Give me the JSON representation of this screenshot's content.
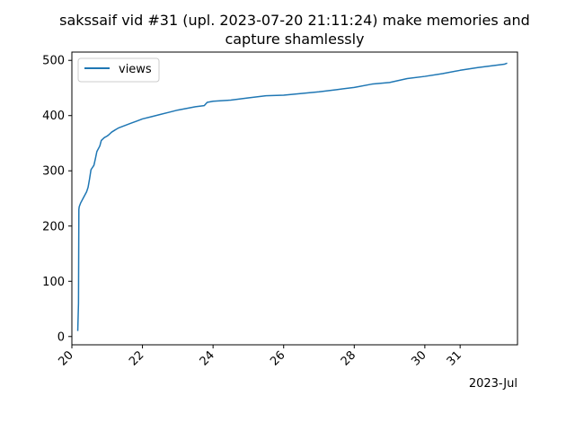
{
  "chart_data": {
    "type": "line",
    "title": [
      "sakssaif vid #31 (upl. 2023-07-20 21:11:24) make memories and",
      "capture shamlessly"
    ],
    "xlabel": "",
    "ylabel": "",
    "x_offset_label": "2023-Jul",
    "x_ticks": [
      {
        "label": "20",
        "value": "2023-07-20"
      },
      {
        "label": "22",
        "value": "2023-07-22"
      },
      {
        "label": "24",
        "value": "2023-07-24"
      },
      {
        "label": "26",
        "value": "2023-07-26"
      },
      {
        "label": "28",
        "value": "2023-07-28"
      },
      {
        "label": "30",
        "value": "2023-07-30"
      },
      {
        "label": "31",
        "value": "2023-07-31"
      }
    ],
    "y_ticks": [
      0,
      100,
      200,
      300,
      400,
      500
    ],
    "xlim": [
      "2023-07-20T00:00",
      "2023-08-01T15:00"
    ],
    "ylim": [
      -15,
      515
    ],
    "grid": false,
    "legend": {
      "position": "top-left",
      "entries": [
        "views"
      ]
    },
    "series": [
      {
        "name": "views",
        "color": "#1f77b4",
        "x": [
          "2023-07-20T04:00",
          "2023-07-20T04:30",
          "2023-07-20T04:45",
          "2023-07-20T05:00",
          "2023-07-20T06:00",
          "2023-07-20T08:00",
          "2023-07-20T10:00",
          "2023-07-20T11:00",
          "2023-07-20T12:00",
          "2023-07-20T13:00",
          "2023-07-20T15:00",
          "2023-07-20T16:00",
          "2023-07-20T17:00",
          "2023-07-20T19:00",
          "2023-07-20T20:00",
          "2023-07-20T22:00",
          "2023-07-21T00:00",
          "2023-07-21T01:00",
          "2023-07-21T03:00",
          "2023-07-21T06:00",
          "2023-07-21T08:00",
          "2023-07-21T12:00",
          "2023-07-21T16:00",
          "2023-07-21T20:00",
          "2023-07-22T00:00",
          "2023-07-22T06:00",
          "2023-07-22T12:00",
          "2023-07-22T18:00",
          "2023-07-23T00:00",
          "2023-07-23T06:00",
          "2023-07-23T12:00",
          "2023-07-23T18:00",
          "2023-07-23T20:00",
          "2023-07-24T00:00",
          "2023-07-24T12:00",
          "2023-07-25T00:00",
          "2023-07-25T12:00",
          "2023-07-26T00:00",
          "2023-07-26T12:00",
          "2023-07-27T00:00",
          "2023-07-27T12:00",
          "2023-07-28T00:00",
          "2023-07-28T12:00",
          "2023-07-29T00:00",
          "2023-07-29T12:00",
          "2023-07-30T00:00",
          "2023-07-30T12:00",
          "2023-07-31T00:00",
          "2023-07-31T12:00",
          "2023-08-01T00:00",
          "2023-08-01T06:00",
          "2023-08-01T08:00"
        ],
        "y": [
          10,
          60,
          230,
          235,
          242,
          252,
          262,
          270,
          285,
          302,
          310,
          322,
          335,
          345,
          355,
          360,
          363,
          365,
          370,
          375,
          378,
          382,
          386,
          390,
          394,
          398,
          402,
          406,
          410,
          413,
          416,
          418,
          424,
          426,
          428,
          432,
          436,
          437,
          440,
          443,
          447,
          451,
          457,
          460,
          467,
          471,
          476,
          482,
          487,
          491,
          493,
          495
        ]
      }
    ]
  }
}
